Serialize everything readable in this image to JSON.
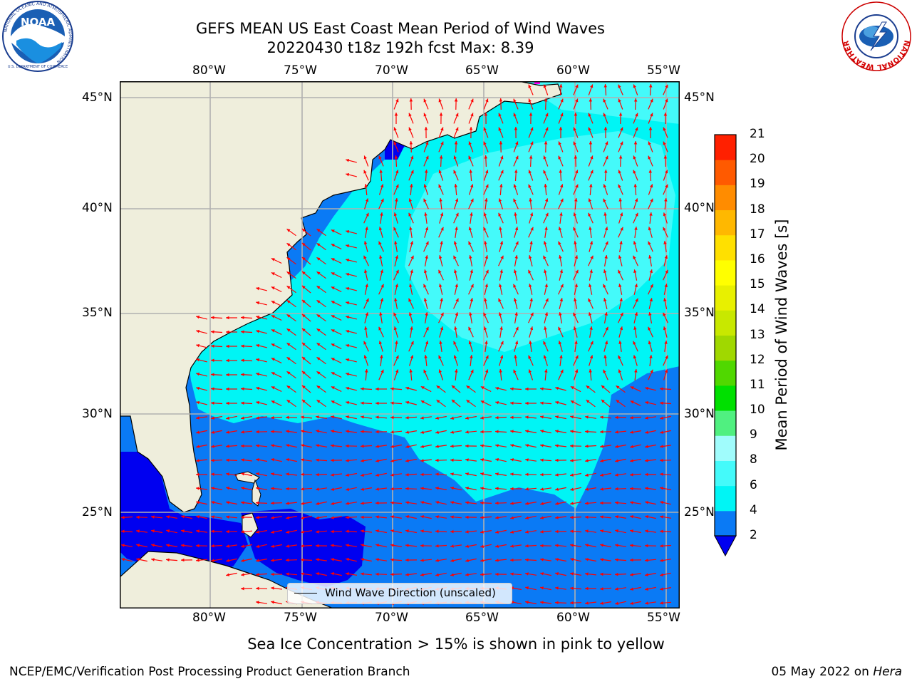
{
  "header": {
    "title_line1": "GEFS MEAN US East Coast Mean Period of Wind Waves",
    "title_line2": "20220430 t18z 192h fcst   Max: 8.39",
    "noaa_logo_text": "NOAA",
    "noaa_ring_text": "NATIONAL OCEANIC AND ATMOSPHERIC ADMINISTRATION",
    "noaa_ring_text_bottom": "U.S. DEPARTMENT OF COMMERCE",
    "nws_ring_text": "NATIONAL WEATHER SERVICE"
  },
  "map": {
    "lon_labels": [
      "80°W",
      "75°W",
      "70°W",
      "65°W",
      "60°W",
      "55°W"
    ],
    "lat_labels": [
      "45°N",
      "40°N",
      "35°N",
      "30°N",
      "25°N"
    ],
    "legend_text": "Wind Wave Direction (unscaled)",
    "colors": {
      "land": "#efeedc",
      "ocean_2_4": "#0a7af5",
      "ocean_under_2": "#0000f0",
      "ocean_4_6": "#00f5f5",
      "ocean_6_8": "#44fafa",
      "arrow": "#ff0000",
      "grid": "#b0b0b0",
      "ice_marker": "#ff00ff"
    }
  },
  "colorbar": {
    "title": "Mean Period of Wind Waves [s]",
    "ticks": [
      "2",
      "4",
      "6",
      "8",
      "9",
      "10",
      "11",
      "12",
      "13",
      "14",
      "15",
      "16",
      "17",
      "18",
      "19",
      "20",
      "21"
    ],
    "colors": [
      "#0a7af5",
      "#00f5f5",
      "#44fafa",
      "#a0fcfc",
      "#50f080",
      "#00e000",
      "#50d800",
      "#a0d800",
      "#c8e800",
      "#e8f000",
      "#ffff00",
      "#ffe000",
      "#ffb800",
      "#ff8c00",
      "#ff5a00",
      "#ff2000"
    ],
    "under_color": "#0000f0"
  },
  "footer": {
    "caption": "Sea Ice Concentration > 15% is shown in pink to yellow",
    "credit": "NCEP/EMC/Verification Post Processing Product Generation Branch",
    "date": "05 May 2022",
    "date_on": "on",
    "machine": "Hera"
  }
}
